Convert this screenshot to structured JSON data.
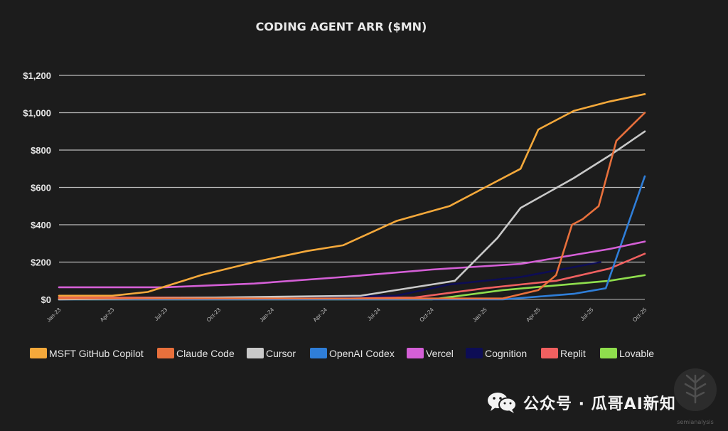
{
  "chart_data": {
    "type": "line",
    "title": "CODING AGENT ARR ($MN)",
    "xlabel": "",
    "ylabel": "",
    "ylim": [
      0,
      1200
    ],
    "yticks": [
      0,
      200,
      400,
      600,
      800,
      1000,
      1200
    ],
    "ytick_labels": [
      "$0",
      "$200",
      "$400",
      "$600",
      "$800",
      "$1,000",
      "$1,200"
    ],
    "grid": true,
    "legend_position": "bottom",
    "xtick_labels": [
      "Jan-23",
      "Apr-23",
      "Jul-23",
      "Oct-23",
      "Jan-24",
      "Apr-24",
      "Jul-24",
      "Oct-24",
      "Jan-25",
      "Apr-25",
      "Jul-25",
      "Oct-25"
    ],
    "x_range": [
      0,
      33
    ],
    "series": [
      {
        "name": "MSFT GitHub Copilot",
        "color": "#f5a93b",
        "x": [
          0,
          3,
          5,
          8,
          11,
          14,
          16,
          19,
          22,
          24,
          26,
          27,
          29,
          31,
          33
        ],
        "y": [
          20,
          20,
          40,
          130,
          200,
          260,
          290,
          420,
          500,
          600,
          700,
          910,
          1010,
          1060,
          1100
        ]
      },
      {
        "name": "Claude Code",
        "color": "#e8703c",
        "x": [
          0,
          25,
          27,
          28,
          28.9,
          29.5,
          30.4,
          31.4,
          33
        ],
        "y": [
          5,
          5,
          50,
          130,
          400,
          430,
          500,
          850,
          1000
        ]
      },
      {
        "name": "Cursor",
        "color": "#c9c9c9",
        "x": [
          0,
          17,
          19,
          21,
          22.3,
          24.7,
          26,
          29,
          31,
          33
        ],
        "y": [
          0,
          20,
          50,
          80,
          100,
          330,
          490,
          650,
          770,
          900
        ]
      },
      {
        "name": "OpenAI Codex",
        "color": "#2f7ed8",
        "x": [
          0,
          25,
          29,
          30.8,
          33
        ],
        "y": [
          0,
          0,
          30,
          60,
          660
        ]
      },
      {
        "name": "Vercel",
        "color": "#d45fd6",
        "x": [
          0,
          6,
          11,
          16,
          21,
          26,
          31,
          33
        ],
        "y": [
          65,
          65,
          85,
          120,
          160,
          190,
          270,
          310
        ]
      },
      {
        "name": "Cognition",
        "color": "#0d0d55",
        "x": [
          0,
          14,
          19,
          22,
          26,
          30.5
        ],
        "y": [
          0,
          10,
          20,
          80,
          120,
          200
        ]
      },
      {
        "name": "Replit",
        "color": "#f06060",
        "x": [
          0,
          20,
          22,
          24,
          26,
          28,
          31,
          33
        ],
        "y": [
          10,
          10,
          35,
          60,
          80,
          100,
          165,
          245
        ]
      },
      {
        "name": "Lovable",
        "color": "#8fde4d",
        "x": [
          0,
          21,
          25,
          28,
          31,
          33
        ],
        "y": [
          0,
          0,
          50,
          75,
          100,
          130
        ]
      }
    ]
  },
  "watermark": {
    "text": "公众号 · 瓜哥AI新知",
    "brand": "semianalysis"
  }
}
